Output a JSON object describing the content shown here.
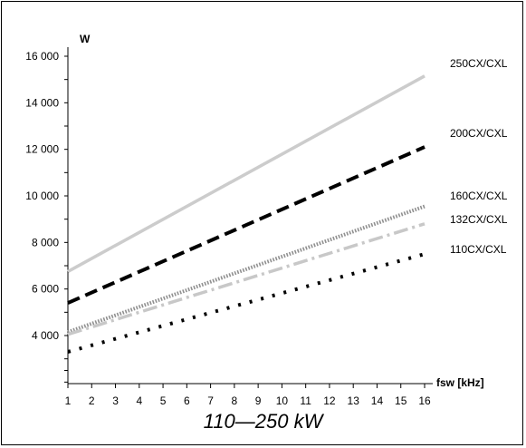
{
  "caption": "110—250 kW",
  "chart_data": {
    "type": "line",
    "ylabel": "W",
    "xlabel": "fsw [kHz]",
    "x": [
      1,
      16
    ],
    "xticks": [
      1,
      2,
      3,
      4,
      5,
      6,
      7,
      8,
      9,
      10,
      11,
      12,
      13,
      14,
      15,
      16
    ],
    "yticks": [
      4000,
      6000,
      8000,
      10000,
      12000,
      14000,
      16000
    ],
    "ytick_labels": [
      "4 000",
      "6 000",
      "8 000",
      "10 000",
      "12 000",
      "14 000",
      "16 000"
    ],
    "xlim": [
      1,
      16
    ],
    "ylim": [
      2000,
      16000
    ],
    "grid": false,
    "legend": "labels at line ends, right",
    "series": [
      {
        "name": "250CX/CXL",
        "values": [
          6750,
          15150
        ],
        "color": "#cccccc",
        "dash": "solid"
      },
      {
        "name": "200CX/CXL",
        "values": [
          5400,
          12100
        ],
        "color": "#000000",
        "dash": "dashed"
      },
      {
        "name": "160CX/CXL",
        "values": [
          4150,
          9550
        ],
        "color": "#909090",
        "dash": "dense-dotted"
      },
      {
        "name": "132CX/CXL",
        "values": [
          4050,
          8800
        ],
        "color": "#c8c8c8",
        "dash": "dash-dot"
      },
      {
        "name": "110CX/CXL",
        "values": [
          3300,
          7500
        ],
        "color": "#000000",
        "dash": "dotted"
      }
    ]
  }
}
